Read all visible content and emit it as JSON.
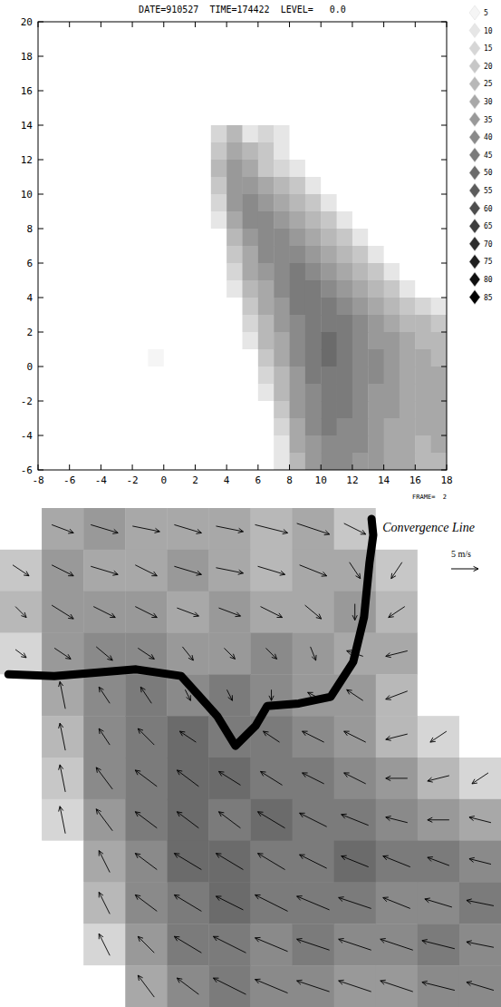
{
  "chart_data": [
    {
      "type": "heatmap",
      "title": "DATE=910527  TIME=174422  LEVEL=   0.0",
      "footer": "FRAME=  2",
      "xlim": [
        -8,
        18
      ],
      "ylim": [
        -6,
        20
      ],
      "xticks": [
        -8,
        -6,
        -4,
        -2,
        0,
        2,
        4,
        6,
        8,
        10,
        12,
        14,
        16,
        18
      ],
      "yticks": [
        -6,
        -4,
        -2,
        0,
        2,
        4,
        6,
        8,
        10,
        12,
        14,
        16,
        18,
        20
      ],
      "colorbar": {
        "range": [
          5,
          85
        ],
        "ticks": [
          5,
          10,
          15,
          20,
          25,
          30,
          35,
          40,
          45,
          50,
          55,
          60,
          65,
          70,
          75,
          80,
          85
        ]
      },
      "cells": [
        [
          0,
          0,
          0,
          0,
          0,
          0,
          0,
          0,
          0,
          0,
          0,
          0,
          0,
          0,
          0,
          0,
          0,
          0,
          0,
          0,
          0,
          0,
          0,
          0,
          0,
          0
        ],
        [
          0,
          0,
          0,
          0,
          0,
          0,
          0,
          0,
          0,
          0,
          0,
          0,
          0,
          0,
          0,
          0,
          0,
          0,
          0,
          0,
          0,
          0,
          0,
          0,
          0,
          0
        ],
        [
          0,
          0,
          0,
          0,
          0,
          0,
          0,
          0,
          0,
          0,
          0,
          0,
          0,
          0,
          0,
          0,
          0,
          0,
          0,
          0,
          0,
          0,
          0,
          0,
          0,
          0
        ],
        [
          0,
          0,
          0,
          0,
          0,
          0,
          0,
          0,
          0,
          0,
          0,
          0,
          0,
          0,
          0,
          0,
          0,
          0,
          0,
          0,
          0,
          0,
          0,
          0,
          0,
          0
        ],
        [
          0,
          0,
          0,
          0,
          0,
          0,
          0,
          0,
          0,
          0,
          0,
          0,
          0,
          0,
          0,
          0,
          0,
          0,
          0,
          0,
          0,
          0,
          0,
          0,
          0,
          0
        ],
        [
          0,
          0,
          0,
          0,
          0,
          0,
          0,
          0,
          0,
          0,
          0,
          0,
          0,
          0,
          0,
          0,
          0,
          0,
          0,
          0,
          0,
          0,
          0,
          0,
          0,
          0
        ],
        [
          0,
          0,
          0,
          0,
          0,
          0,
          0,
          0,
          0,
          0,
          0,
          15,
          25,
          10,
          15,
          10,
          0,
          0,
          0,
          0,
          0,
          0,
          0,
          0,
          0,
          0
        ],
        [
          0,
          0,
          0,
          0,
          0,
          0,
          0,
          0,
          0,
          0,
          0,
          20,
          30,
          25,
          20,
          10,
          0,
          0,
          0,
          0,
          0,
          0,
          0,
          0,
          0,
          0
        ],
        [
          0,
          0,
          0,
          0,
          0,
          0,
          0,
          0,
          0,
          0,
          0,
          25,
          35,
          30,
          20,
          15,
          10,
          0,
          0,
          0,
          0,
          0,
          0,
          0,
          0,
          0
        ],
        [
          0,
          0,
          0,
          0,
          0,
          0,
          0,
          0,
          0,
          0,
          0,
          20,
          35,
          35,
          30,
          25,
          20,
          10,
          0,
          0,
          0,
          0,
          0,
          0,
          0,
          0
        ],
        [
          0,
          0,
          0,
          0,
          0,
          0,
          0,
          0,
          0,
          0,
          0,
          15,
          35,
          40,
          35,
          30,
          25,
          20,
          10,
          0,
          0,
          0,
          0,
          0,
          0,
          0
        ],
        [
          0,
          0,
          0,
          0,
          0,
          0,
          0,
          0,
          0,
          0,
          0,
          10,
          30,
          40,
          40,
          35,
          30,
          25,
          20,
          10,
          0,
          0,
          0,
          0,
          0,
          0
        ],
        [
          0,
          0,
          0,
          0,
          0,
          0,
          0,
          0,
          0,
          0,
          0,
          0,
          25,
          35,
          40,
          40,
          35,
          30,
          25,
          20,
          10,
          0,
          0,
          0,
          0,
          0
        ],
        [
          0,
          0,
          0,
          0,
          0,
          0,
          0,
          0,
          0,
          0,
          0,
          0,
          20,
          30,
          40,
          40,
          40,
          35,
          30,
          25,
          20,
          10,
          0,
          0,
          0,
          0
        ],
        [
          0,
          0,
          0,
          0,
          0,
          0,
          0,
          0,
          0,
          0,
          0,
          0,
          15,
          30,
          35,
          40,
          45,
          40,
          35,
          30,
          25,
          20,
          10,
          0,
          0,
          0
        ],
        [
          0,
          0,
          0,
          0,
          0,
          0,
          0,
          0,
          0,
          0,
          0,
          0,
          10,
          25,
          30,
          40,
          45,
          45,
          40,
          35,
          30,
          25,
          20,
          10,
          0,
          0
        ],
        [
          0,
          0,
          0,
          0,
          0,
          0,
          0,
          0,
          0,
          0,
          0,
          0,
          0,
          20,
          30,
          35,
          45,
          45,
          45,
          40,
          35,
          30,
          25,
          20,
          15,
          10
        ],
        [
          0,
          0,
          0,
          0,
          0,
          0,
          0,
          0,
          0,
          0,
          0,
          0,
          0,
          15,
          25,
          35,
          40,
          45,
          45,
          45,
          40,
          35,
          30,
          25,
          25,
          20
        ],
        [
          0,
          0,
          0,
          0,
          0,
          0,
          0,
          0,
          0,
          0,
          0,
          0,
          0,
          10,
          25,
          30,
          40,
          45,
          50,
          45,
          40,
          35,
          35,
          30,
          25,
          25
        ],
        [
          0,
          0,
          0,
          0,
          0,
          0,
          0,
          5,
          0,
          0,
          0,
          0,
          0,
          0,
          20,
          30,
          40,
          45,
          50,
          45,
          40,
          40,
          35,
          30,
          30,
          25
        ],
        [
          0,
          0,
          0,
          0,
          0,
          0,
          0,
          0,
          0,
          0,
          0,
          0,
          0,
          0,
          15,
          25,
          35,
          45,
          45,
          45,
          40,
          40,
          35,
          30,
          30,
          30
        ],
        [
          0,
          0,
          0,
          0,
          0,
          0,
          0,
          0,
          0,
          0,
          0,
          0,
          0,
          0,
          10,
          25,
          35,
          40,
          45,
          45,
          40,
          35,
          35,
          30,
          30,
          30
        ],
        [
          0,
          0,
          0,
          0,
          0,
          0,
          0,
          0,
          0,
          0,
          0,
          0,
          0,
          0,
          0,
          20,
          35,
          40,
          45,
          45,
          40,
          35,
          35,
          30,
          30,
          30
        ],
        [
          0,
          0,
          0,
          0,
          0,
          0,
          0,
          0,
          0,
          0,
          0,
          0,
          0,
          0,
          0,
          15,
          30,
          40,
          45,
          40,
          40,
          35,
          30,
          30,
          30,
          30
        ],
        [
          0,
          0,
          0,
          0,
          0,
          0,
          0,
          0,
          0,
          0,
          0,
          0,
          0,
          0,
          0,
          10,
          30,
          35,
          40,
          40,
          40,
          35,
          30,
          30,
          25,
          30
        ],
        [
          0,
          0,
          0,
          0,
          0,
          0,
          0,
          0,
          0,
          0,
          0,
          0,
          0,
          0,
          0,
          10,
          25,
          35,
          40,
          40,
          35,
          35,
          30,
          30,
          25,
          25
        ]
      ]
    },
    {
      "type": "vector_field",
      "annotation": "Convergence Line",
      "reference_vector": {
        "speed": 5,
        "label": "5 m/s"
      },
      "convergence_line": [
        [
          0.2,
          4.0
        ],
        [
          1.3,
          4.04
        ],
        [
          3.26,
          3.88
        ],
        [
          4.34,
          4.04
        ],
        [
          5.2,
          5.0
        ],
        [
          5.64,
          5.72
        ],
        [
          6.12,
          5.24
        ],
        [
          6.4,
          4.76
        ],
        [
          7.16,
          4.7
        ],
        [
          7.92,
          4.54
        ],
        [
          8.46,
          3.7
        ],
        [
          8.72,
          2.62
        ],
        [
          8.85,
          1.31
        ],
        [
          8.94,
          0.65
        ],
        [
          8.9,
          0.26
        ]
      ],
      "cells": [
        [
          0,
          30,
          35,
          30,
          30,
          30,
          25,
          30,
          20,
          0,
          0,
          0
        ],
        [
          20,
          35,
          30,
          30,
          35,
          30,
          25,
          30,
          30,
          20,
          0,
          0
        ],
        [
          25,
          35,
          35,
          35,
          30,
          35,
          30,
          30,
          35,
          25,
          0,
          0
        ],
        [
          15,
          35,
          40,
          40,
          35,
          35,
          40,
          35,
          30,
          30,
          0,
          0
        ],
        [
          0,
          30,
          40,
          45,
          40,
          45,
          40,
          35,
          35,
          25,
          0,
          0
        ],
        [
          0,
          25,
          40,
          45,
          50,
          45,
          45,
          40,
          35,
          25,
          15,
          0
        ],
        [
          0,
          20,
          40,
          45,
          50,
          50,
          45,
          45,
          40,
          35,
          25,
          15
        ],
        [
          0,
          15,
          35,
          45,
          50,
          45,
          50,
          45,
          45,
          40,
          35,
          30
        ],
        [
          0,
          0,
          30,
          40,
          50,
          50,
          45,
          45,
          50,
          45,
          45,
          40
        ],
        [
          0,
          0,
          25,
          40,
          45,
          50,
          45,
          45,
          45,
          40,
          40,
          45
        ],
        [
          0,
          0,
          15,
          35,
          45,
          45,
          40,
          45,
          40,
          40,
          45,
          40
        ],
        [
          0,
          0,
          0,
          30,
          40,
          45,
          40,
          40,
          35,
          35,
          40,
          40
        ]
      ],
      "u": [
        [
          null,
          4,
          5,
          5,
          5,
          5,
          6,
          6,
          4,
          null,
          null,
          null
        ],
        [
          3,
          4,
          5,
          4,
          5,
          5,
          5,
          5,
          2,
          -2,
          null,
          null
        ],
        [
          2,
          4,
          4,
          4,
          4,
          4,
          4,
          3,
          0,
          -3,
          null,
          null
        ],
        [
          2,
          3,
          3,
          3,
          2,
          2,
          2,
          1,
          -3,
          -4,
          null,
          null
        ],
        [
          null,
          -1,
          -2,
          -2,
          1,
          1,
          0,
          -2,
          -3,
          -4,
          null,
          null
        ],
        [
          null,
          -1,
          -2,
          -3,
          -3,
          -2,
          -3,
          -4,
          -4,
          -4,
          -3,
          null
        ],
        [
          null,
          -1,
          -3,
          -4,
          -4,
          -4,
          -4,
          -4,
          -4,
          -4,
          -4,
          -3
        ],
        [
          null,
          -1,
          -3,
          -4,
          -4,
          -4,
          -5,
          -5,
          -5,
          -4,
          -4,
          -4
        ],
        [
          null,
          null,
          -2,
          -4,
          -5,
          -5,
          -5,
          -5,
          -5,
          -5,
          -4,
          -4
        ],
        [
          null,
          null,
          -2,
          -4,
          -5,
          -5,
          -6,
          -6,
          -6,
          -5,
          -5,
          -5
        ],
        [
          null,
          null,
          -2,
          -3,
          -5,
          -6,
          -6,
          -6,
          -6,
          -6,
          -6,
          -5
        ],
        [
          null,
          null,
          null,
          -3,
          -4,
          -6,
          -6,
          -6,
          -6,
          -6,
          -6,
          -5
        ]
      ],
      "v": [
        [
          null,
          -1.5,
          -1.5,
          -1,
          -1.5,
          -1,
          -1.5,
          -2,
          -2,
          null,
          null,
          null
        ],
        [
          -2,
          -2,
          -1.5,
          -2,
          -1.5,
          -1,
          -1.5,
          -2,
          -3,
          -3,
          null,
          null
        ],
        [
          -2,
          -2.5,
          -2,
          -2,
          -1.5,
          -1.5,
          -2,
          -2.5,
          -3,
          -2,
          null,
          null
        ],
        [
          -1.5,
          -2,
          -2.5,
          -2,
          -2.5,
          -2,
          -2,
          -2.5,
          1,
          -1,
          null,
          null
        ],
        [
          null,
          5,
          3,
          3,
          -2,
          -2,
          -2,
          1,
          2,
          -1.5,
          null,
          null
        ],
        [
          null,
          5,
          3,
          3,
          2,
          1,
          2,
          2,
          2,
          -1,
          -2,
          null
        ],
        [
          null,
          5,
          4,
          3,
          3,
          2.5,
          2.5,
          2,
          2,
          0,
          -1,
          -2
        ],
        [
          null,
          5,
          4,
          3,
          3,
          3,
          3,
          2.5,
          2,
          1,
          0,
          1
        ],
        [
          null,
          null,
          4,
          3,
          3,
          3,
          3,
          2.5,
          2,
          2,
          1.5,
          1
        ],
        [
          null,
          null,
          4,
          3,
          3,
          2.5,
          3,
          2.5,
          2,
          2,
          1.5,
          1
        ],
        [
          null,
          null,
          4,
          3,
          3,
          3,
          2.5,
          2,
          2,
          2,
          1.5,
          1
        ],
        [
          null,
          null,
          null,
          4,
          3,
          3,
          2.5,
          2,
          2,
          2,
          1.5,
          1.5
        ]
      ]
    }
  ]
}
